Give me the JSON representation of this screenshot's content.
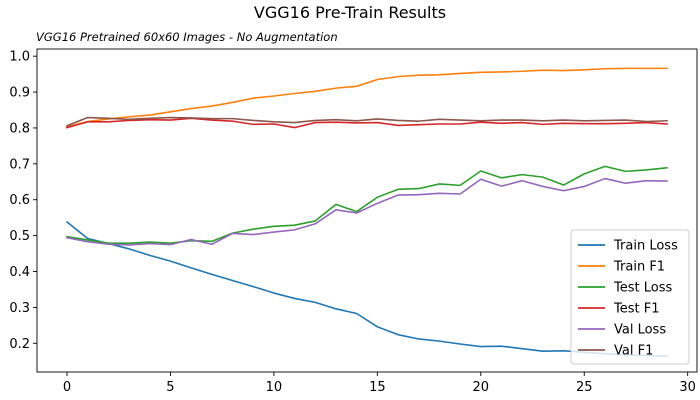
{
  "chart_data": {
    "type": "line",
    "title": "VGG16 Pre-Train Results",
    "subtitle": "VGG16 Pretrained 60x60 Images - No Augmentation",
    "xlabel": "",
    "ylabel": "",
    "xlim": [
      -1.45,
      30.45
    ],
    "ylim": [
      0.12,
      1.02
    ],
    "xticks": [
      0,
      5,
      10,
      15,
      20,
      25,
      30
    ],
    "yticks": [
      0.2,
      0.3,
      0.4,
      0.5,
      0.6,
      0.7,
      0.8,
      0.9,
      1.0
    ],
    "grid": false,
    "legend_position": "lower-right",
    "x": [
      0,
      1,
      2,
      3,
      4,
      5,
      6,
      7,
      8,
      9,
      10,
      11,
      12,
      13,
      14,
      15,
      16,
      17,
      18,
      19,
      20,
      21,
      22,
      23,
      24,
      25,
      26,
      27,
      28,
      29
    ],
    "series": [
      {
        "name": "Train Loss",
        "color": "#1f77b4",
        "values": [
          0.538,
          0.492,
          0.478,
          0.463,
          0.445,
          0.429,
          0.41,
          0.392,
          0.375,
          0.358,
          0.34,
          0.325,
          0.314,
          0.296,
          0.283,
          0.246,
          0.224,
          0.212,
          0.206,
          0.198,
          0.191,
          0.192,
          0.185,
          0.178,
          0.179,
          0.175,
          0.171,
          0.168,
          0.166,
          0.164
        ]
      },
      {
        "name": "Train F1",
        "color": "#ff7f0e",
        "values": [
          0.803,
          0.818,
          0.825,
          0.831,
          0.836,
          0.845,
          0.854,
          0.861,
          0.871,
          0.883,
          0.889,
          0.896,
          0.902,
          0.911,
          0.916,
          0.935,
          0.943,
          0.947,
          0.948,
          0.952,
          0.955,
          0.956,
          0.958,
          0.961,
          0.96,
          0.962,
          0.965,
          0.966,
          0.966,
          0.966
        ]
      },
      {
        "name": "Test Loss",
        "color": "#2ca02c",
        "values": [
          0.497,
          0.488,
          0.479,
          0.479,
          0.482,
          0.479,
          0.486,
          0.484,
          0.507,
          0.518,
          0.526,
          0.529,
          0.541,
          0.587,
          0.567,
          0.607,
          0.629,
          0.631,
          0.644,
          0.64,
          0.68,
          0.661,
          0.67,
          0.663,
          0.641,
          0.672,
          0.693,
          0.679,
          0.683,
          0.689
        ]
      },
      {
        "name": "Test F1",
        "color": "#d62728",
        "values": [
          0.801,
          0.817,
          0.817,
          0.821,
          0.823,
          0.822,
          0.827,
          0.822,
          0.819,
          0.81,
          0.811,
          0.801,
          0.815,
          0.816,
          0.814,
          0.815,
          0.807,
          0.809,
          0.811,
          0.811,
          0.816,
          0.813,
          0.815,
          0.81,
          0.813,
          0.812,
          0.812,
          0.813,
          0.815,
          0.811
        ]
      },
      {
        "name": "Val Loss",
        "color": "#9467bd",
        "values": [
          0.494,
          0.483,
          0.476,
          0.474,
          0.478,
          0.475,
          0.489,
          0.476,
          0.506,
          0.503,
          0.51,
          0.516,
          0.533,
          0.572,
          0.563,
          0.59,
          0.613,
          0.614,
          0.618,
          0.616,
          0.657,
          0.638,
          0.653,
          0.637,
          0.625,
          0.637,
          0.659,
          0.646,
          0.653,
          0.652
        ]
      },
      {
        "name": "Val F1",
        "color": "#8c564b",
        "values": [
          0.806,
          0.829,
          0.827,
          0.824,
          0.827,
          0.829,
          0.828,
          0.826,
          0.826,
          0.821,
          0.817,
          0.815,
          0.821,
          0.823,
          0.82,
          0.825,
          0.821,
          0.819,
          0.824,
          0.822,
          0.82,
          0.822,
          0.822,
          0.82,
          0.822,
          0.82,
          0.821,
          0.822,
          0.818,
          0.82
        ]
      }
    ]
  }
}
